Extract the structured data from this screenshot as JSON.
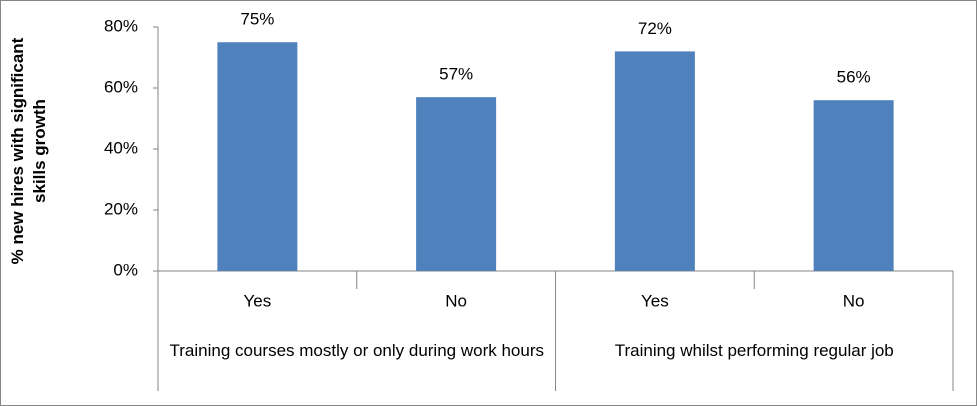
{
  "chart_data": {
    "type": "bar",
    "y_label": "% new hires with significant skills growth",
    "groups": [
      {
        "name": "Training courses mostly or only during work hours",
        "categories": [
          "Yes",
          "No"
        ],
        "values": [
          75,
          57
        ],
        "value_labels": [
          "75%",
          "57%"
        ]
      },
      {
        "name": "Training whilst performing regular job",
        "categories": [
          "Yes",
          "No"
        ],
        "values": [
          72,
          56
        ],
        "value_labels": [
          "72%",
          "56%"
        ]
      }
    ],
    "color": "#4f81bd",
    "ylim": [
      0,
      80
    ],
    "yticks": [
      {
        "value": 0,
        "label": "0%"
      },
      {
        "value": 20,
        "label": "20%"
      },
      {
        "value": 40,
        "label": "40%"
      },
      {
        "value": 60,
        "label": "60%"
      },
      {
        "value": 80,
        "label": "80%"
      }
    ],
    "grid": false
  }
}
